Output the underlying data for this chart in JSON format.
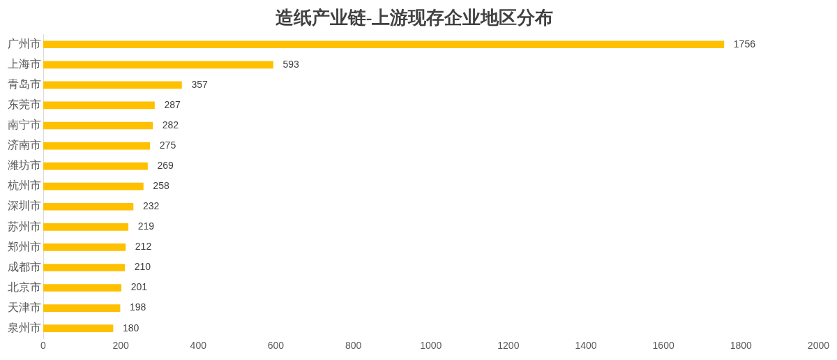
{
  "chart_data": {
    "type": "bar",
    "orientation": "horizontal",
    "title": "造纸产业链-上游现存企业地区分布",
    "categories": [
      "广州市",
      "上海市",
      "青岛市",
      "东莞市",
      "南宁市",
      "济南市",
      "潍坊市",
      "杭州市",
      "深圳市",
      "苏州市",
      "郑州市",
      "成都市",
      "北京市",
      "天津市",
      "泉州市"
    ],
    "values": [
      1756,
      593,
      357,
      287,
      282,
      275,
      269,
      258,
      232,
      219,
      212,
      210,
      201,
      198,
      180
    ],
    "color": "#ffc000",
    "xlim": [
      0,
      2000
    ],
    "xticks": [
      0,
      200,
      400,
      600,
      800,
      1000,
      1200,
      1400,
      1600,
      1800,
      2000
    ],
    "grid": false,
    "legend": false,
    "data_labels": true
  }
}
